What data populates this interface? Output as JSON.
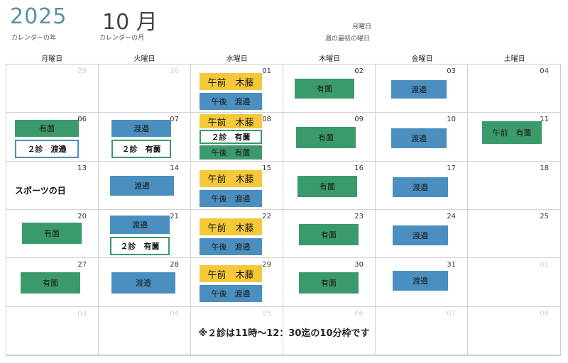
{
  "header": {
    "year": "2025",
    "year_caption": "カレンダーの年",
    "month": "10 月",
    "month_caption": "カレンダーの月",
    "start_day": "月曜日",
    "start_day_caption": "週の最初の曜日"
  },
  "weekdays": [
    "月曜日",
    "火曜日",
    "水曜日",
    "木曜日",
    "金曜日",
    "土曜日"
  ],
  "days": [
    {
      "n": "29",
      "muted": true
    },
    {
      "n": "30",
      "muted": true
    },
    {
      "n": "01"
    },
    {
      "n": "02"
    },
    {
      "n": "03"
    },
    {
      "n": "04"
    },
    {
      "n": "06"
    },
    {
      "n": "07"
    },
    {
      "n": "08"
    },
    {
      "n": "09"
    },
    {
      "n": "10"
    },
    {
      "n": "11"
    },
    {
      "n": "13"
    },
    {
      "n": "14"
    },
    {
      "n": "15"
    },
    {
      "n": "16"
    },
    {
      "n": "17"
    },
    {
      "n": "18"
    },
    {
      "n": "20"
    },
    {
      "n": "21"
    },
    {
      "n": "22"
    },
    {
      "n": "23"
    },
    {
      "n": "24"
    },
    {
      "n": "25"
    },
    {
      "n": "27"
    },
    {
      "n": "28"
    },
    {
      "n": "29"
    },
    {
      "n": "30"
    },
    {
      "n": "31"
    },
    {
      "n": "01",
      "muted": true
    },
    {
      "n": "03",
      "muted": true
    },
    {
      "n": "04",
      "muted": true
    },
    {
      "n": "05",
      "muted": true
    },
    {
      "n": "06",
      "muted": true
    },
    {
      "n": "07",
      "muted": true
    },
    {
      "n": "08",
      "muted": true
    }
  ],
  "events": {
    "w1_wed_am": "午前　木藤",
    "w1_wed_pm": "午後　渡邉",
    "w1_thu": "有薗",
    "w1_fri": "渡邉",
    "w2_mon": "有薗",
    "w2_mon_2": "２診　渡邉",
    "w2_tue": "渡邉",
    "w2_tue_2": "２診　有薗",
    "w2_wed_am": "午前　木藤",
    "w2_wed_2": "２診　有薗",
    "w2_wed_pm": "午後　有薗",
    "w2_thu": "有薗",
    "w2_fri": "渡邉",
    "w2_sat": "午前　有薗",
    "w3_mon_holiday": "スポーツの日",
    "w3_tue": "渡邉",
    "w3_wed_am": "午前　木藤",
    "w3_wed_pm": "午後　渡邉",
    "w3_thu": "有薗",
    "w3_fri": "渡邉",
    "w4_mon": "有薗",
    "w4_tue": "渡邉",
    "w4_tue_2": "２診　有薗",
    "w4_wed_am": "午前　木藤",
    "w4_wed_pm": "午後　渡邉",
    "w4_thu": "有薗",
    "w4_fri": "渡邉",
    "w5_mon": "有薗",
    "w5_tue": "渡邉",
    "w5_wed_am": "午前　木藤",
    "w5_wed_pm": "午後　渡邉",
    "w5_thu": "有薗",
    "w5_fri": "渡邉"
  },
  "footnote": "※２診は11時～12：30迄の10分枠です",
  "colors": {
    "green": "#3b9a6b",
    "blue": "#4a8fbf",
    "yellow": "#f5c83a"
  }
}
